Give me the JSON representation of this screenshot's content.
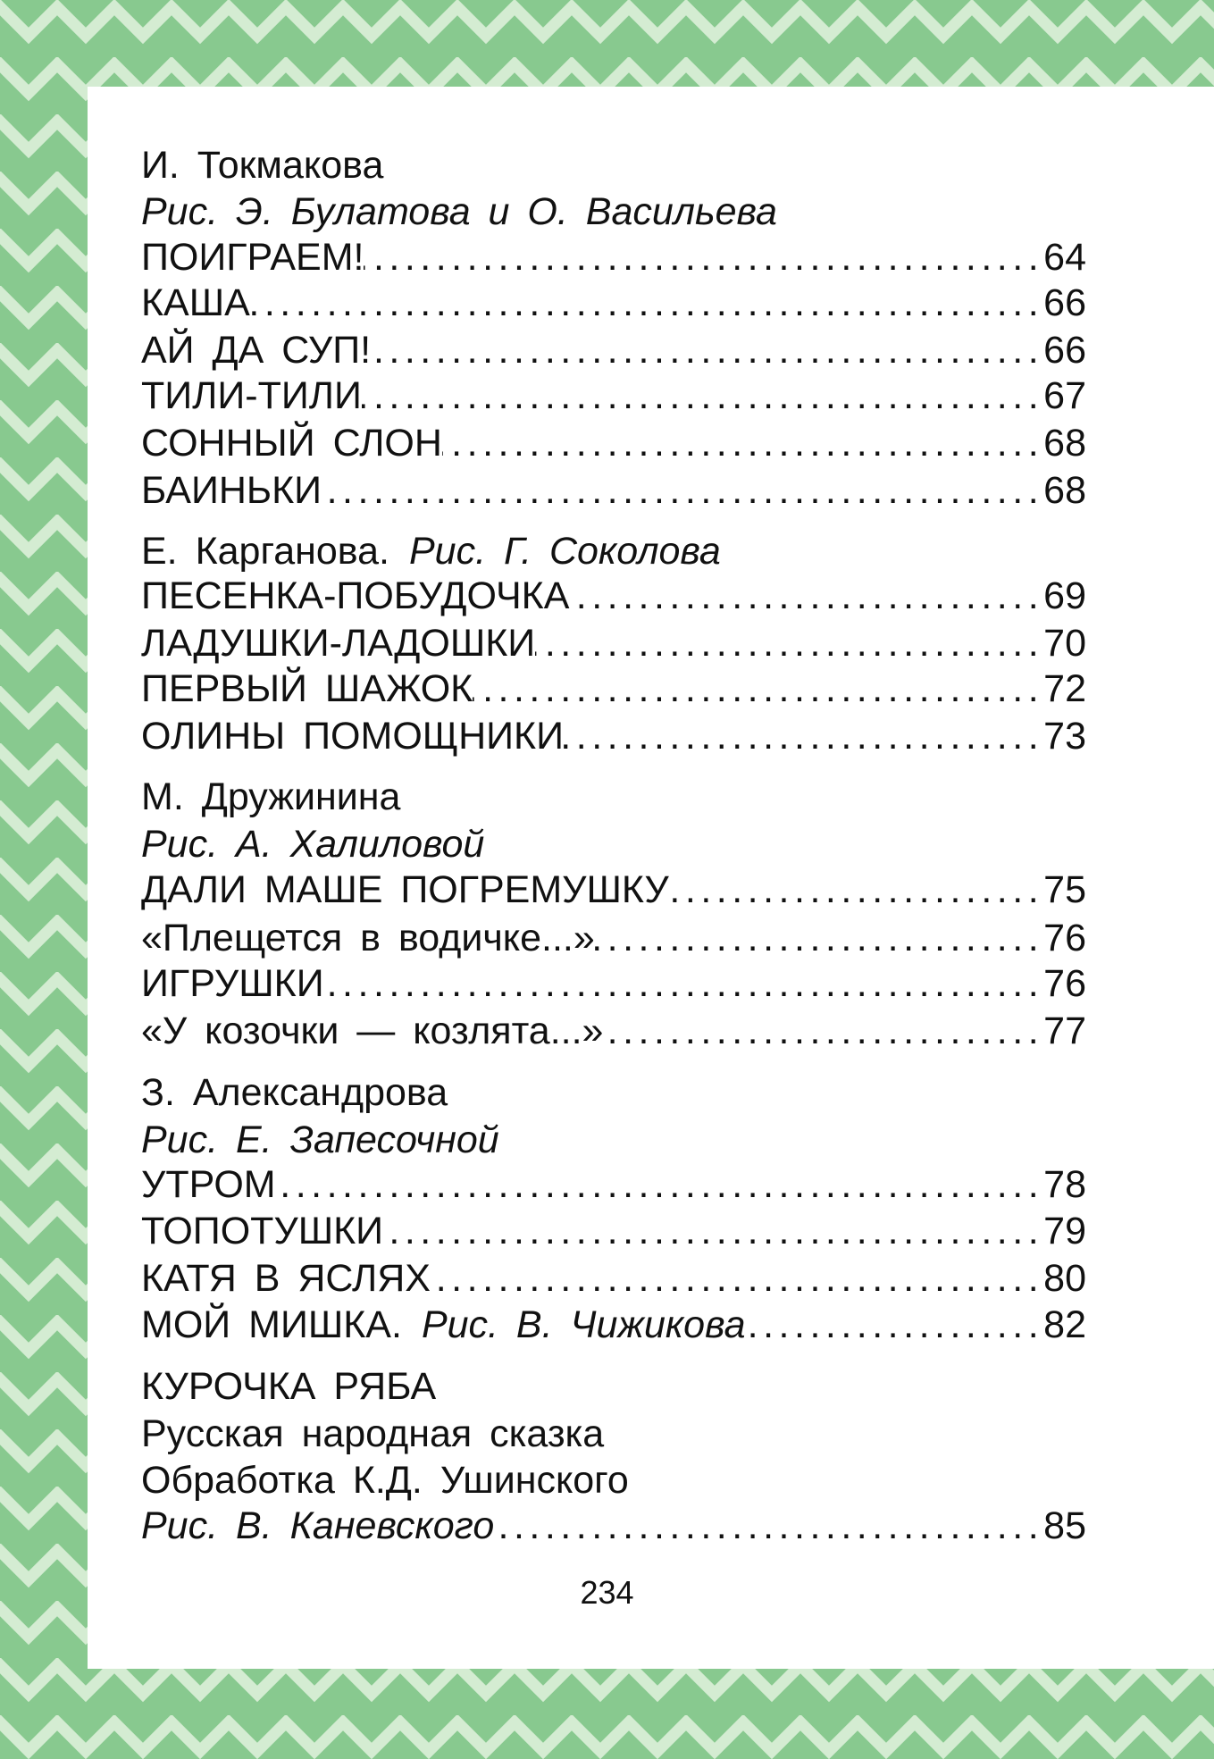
{
  "colors": {
    "border_green": "#88c98f",
    "zigzag_light": "#d4ecd2",
    "page": "#ffffff"
  },
  "toc": [
    {
      "text": "И. Токмакова",
      "kind": "author"
    },
    {
      "text": "Рис.  Э. Булатова  и  О. Васильева",
      "kind": "illustrator",
      "indent": true
    },
    {
      "text": "ПОИГРАЕМ!",
      "page": "64"
    },
    {
      "text": "КАША",
      "page": "66"
    },
    {
      "text": "АЙ  ДА  СУП!",
      "page": "66"
    },
    {
      "text": "ТИЛИ-ТИЛИ",
      "page": "67"
    },
    {
      "text": "СОННЫЙ  СЛОН",
      "page": "68"
    },
    {
      "text": "БАИНЬКИ",
      "page": "68"
    },
    {
      "text": "Е. Карганова.",
      "extra": "Рис.  Г. Соколова",
      "kind": "author"
    },
    {
      "text": "ПЕСЕНКА-ПОБУДОЧКА",
      "page": "69"
    },
    {
      "text": "ЛАДУШКИ-ЛАДОШКИ",
      "page": "70"
    },
    {
      "text": "ПЕРВЫЙ  ШАЖОК",
      "page": "72"
    },
    {
      "text": "ОЛИНЫ  ПОМОЩНИКИ",
      "page": "73"
    },
    {
      "text": "М. Дружинина",
      "kind": "author"
    },
    {
      "text": "Рис.  А. Халиловой",
      "kind": "illustrator"
    },
    {
      "text": "ДАЛИ  МАШЕ  ПОГРЕМУШКУ",
      "page": "75"
    },
    {
      "text": "«Плещется  в  водичке...»",
      "page": "76"
    },
    {
      "text": "ИГРУШКИ",
      "page": "76"
    },
    {
      "text": "«У  козочки  —  козлята...»",
      "page": "77"
    },
    {
      "text": "З. Александрова",
      "kind": "author"
    },
    {
      "text": "Рис.  Е. Запесочной",
      "kind": "illustrator"
    },
    {
      "text": "УТРОМ",
      "page": "78"
    },
    {
      "text": "ТОПОТУШКИ",
      "page": "79"
    },
    {
      "text": "КАТЯ  В  ЯСЛЯХ",
      "page": "80"
    },
    {
      "text": "МОЙ  МИШКА.",
      "extra": "Рис.  В. Чижикова",
      "page": "82"
    },
    {
      "text": "КУРОЧКА  РЯБА",
      "kind": "title"
    },
    {
      "text": "Русская  народная  сказка",
      "kind": "note"
    },
    {
      "text": "Обработка  К.Д. Ушинского",
      "kind": "note"
    },
    {
      "text": "Рис.  В. Каневского",
      "kind": "illustrator",
      "page": "85"
    }
  ],
  "page_number": "234"
}
